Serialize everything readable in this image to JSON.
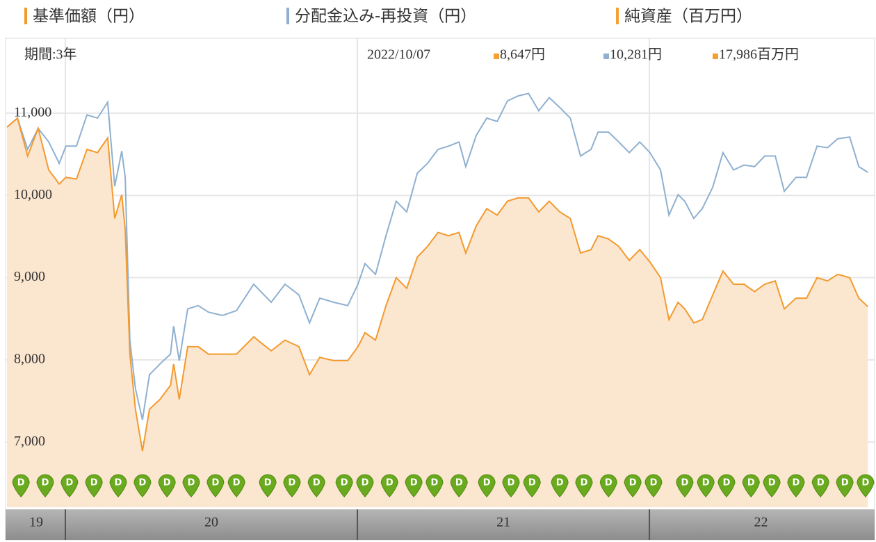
{
  "chart_data": {
    "type": "line",
    "header_legend": [
      {
        "name": "純資産（百万円）",
        "color": "#f5a030"
      }
    ],
    "period": "期間:3年",
    "date": "2022/10/07",
    "readout": [
      {
        "text": "8,647円",
        "color": "#f5a030"
      },
      {
        "text": "10,281円",
        "color": "#8fb0d0"
      },
      {
        "text": "17,986百万円",
        "color": "#f5a030"
      }
    ],
    "x": [
      19.8,
      19.836,
      19.871,
      19.907,
      19.943,
      19.979,
      20.002,
      20.038,
      20.074,
      20.11,
      20.145,
      20.169,
      20.193,
      20.205,
      20.221,
      20.24,
      20.264,
      20.288,
      20.324,
      20.36,
      20.371,
      20.39,
      20.419,
      20.455,
      20.49,
      20.538,
      20.586,
      20.645,
      20.705,
      20.752,
      20.8,
      20.836,
      20.871,
      20.919,
      20.967,
      21.002,
      21.026,
      21.062,
      21.098,
      21.133,
      21.169,
      21.205,
      21.24,
      21.276,
      21.312,
      21.348,
      21.371,
      21.407,
      21.443,
      21.479,
      21.514,
      21.55,
      21.586,
      21.621,
      21.657,
      21.693,
      21.729,
      21.764,
      21.8,
      21.824,
      21.86,
      21.895,
      21.931,
      21.967,
      22.002,
      22.038,
      22.067,
      22.098,
      22.121,
      22.152,
      22.181,
      22.217,
      22.252,
      22.288,
      22.324,
      22.36,
      22.395,
      22.431,
      22.462,
      22.502,
      22.538,
      22.574,
      22.61,
      22.645,
      22.686,
      22.717,
      22.748
    ],
    "series": [
      {
        "name": "基準価額（円）",
        "color": "#f39a2e",
        "fill": "#fbe6d0",
        "values": [
          10830,
          10940,
          10480,
          10815,
          10310,
          10140,
          10220,
          10200,
          10560,
          10520,
          10700,
          9720,
          10010,
          9590,
          8070,
          7400,
          6890,
          7400,
          7520,
          7690,
          7950,
          7520,
          8160,
          8160,
          8070,
          8070,
          8070,
          8280,
          8110,
          8240,
          8160,
          7820,
          8030,
          7990,
          7990,
          8160,
          8330,
          8240,
          8660,
          9000,
          8870,
          9250,
          9380,
          9550,
          9510,
          9550,
          9300,
          9630,
          9840,
          9760,
          9930,
          9970,
          9970,
          9800,
          9930,
          9800,
          9720,
          9300,
          9340,
          9510,
          9470,
          9380,
          9210,
          9340,
          9190,
          9000,
          8490,
          8700,
          8620,
          8450,
          8490,
          8790,
          9080,
          8920,
          8920,
          8830,
          8920,
          8960,
          8620,
          8750,
          8750,
          9000,
          8960,
          9040,
          9000,
          8750,
          8647
        ]
      },
      {
        "name": "分配金込み-再投資（円）",
        "color": "#8fb0d0",
        "values": [
          10830,
          10940,
          10560,
          10815,
          10650,
          10390,
          10600,
          10600,
          10980,
          10940,
          11135,
          10110,
          10540,
          10220,
          8240,
          7650,
          7270,
          7820,
          7950,
          8070,
          8410,
          7990,
          8620,
          8660,
          8580,
          8540,
          8600,
          8920,
          8700,
          8920,
          8790,
          8450,
          8750,
          8700,
          8660,
          8920,
          9170,
          9040,
          9510,
          9930,
          9800,
          10270,
          10390,
          10560,
          10600,
          10650,
          10350,
          10730,
          10940,
          10900,
          11150,
          11210,
          11240,
          11030,
          11190,
          11070,
          10940,
          10480,
          10560,
          10770,
          10770,
          10650,
          10520,
          10650,
          10520,
          10310,
          9760,
          10010,
          9930,
          9720,
          9840,
          10100,
          10520,
          10310,
          10370,
          10350,
          10480,
          10480,
          10050,
          10220,
          10220,
          10600,
          10580,
          10690,
          10710,
          10350,
          10281
        ]
      }
    ],
    "xlim": [
      19.8,
      22.764
    ],
    "x_bands": [
      19,
      20,
      21,
      22
    ],
    "ylim": [
      6207,
      11870
    ],
    "yticks": [
      {
        "value": 7000,
        "label": "7,000"
      },
      {
        "value": 8000,
        "label": "8,000"
      },
      {
        "value": 9000,
        "label": "9,000"
      },
      {
        "value": 10000,
        "label": "10,000"
      },
      {
        "value": 11000,
        "label": "11,000"
      }
    ],
    "grid": true,
    "dividend_label": "D",
    "dividend_color": "#6aaa1e",
    "dividend_x": [
      19.848,
      19.931,
      20.014,
      20.098,
      20.181,
      20.264,
      20.348,
      20.431,
      20.514,
      20.586,
      20.693,
      20.776,
      20.86,
      20.955,
      21.026,
      21.11,
      21.193,
      21.264,
      21.348,
      21.443,
      21.526,
      21.598,
      21.693,
      21.776,
      21.86,
      21.943,
      22.014,
      22.121,
      22.193,
      22.264,
      22.348,
      22.419,
      22.502,
      22.586,
      22.669,
      22.74
    ]
  }
}
